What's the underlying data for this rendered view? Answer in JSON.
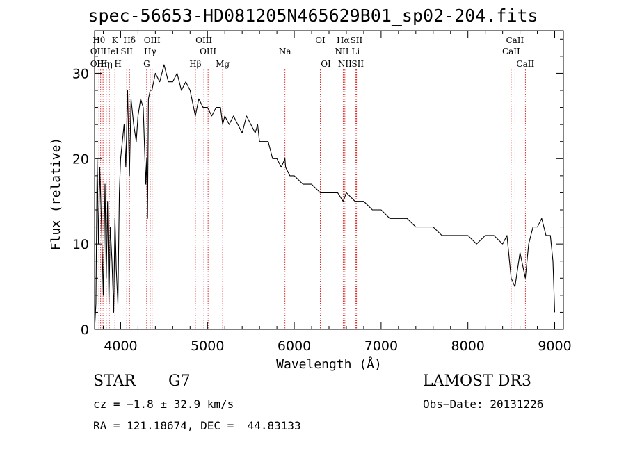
{
  "chart_data": {
    "type": "line",
    "title": "spec-56653-HD081205N465629B01_sp02-204.fits",
    "xlabel": "Wavelength (Å)",
    "ylabel": "Flux (relative)",
    "xlim": [
      3700,
      9100
    ],
    "ylim": [
      0,
      35
    ],
    "xticks": [
      4000,
      5000,
      6000,
      7000,
      8000,
      9000
    ],
    "yticks": [
      0,
      10,
      20,
      30
    ],
    "grid": false,
    "series": [
      {
        "name": "spectrum",
        "x": [
          3700,
          3715,
          3730,
          3745,
          3760,
          3780,
          3800,
          3820,
          3835,
          3850,
          3865,
          3880,
          3900,
          3920,
          3935,
          3950,
          3968,
          3985,
          4000,
          4020,
          4040,
          4060,
          4080,
          4101,
          4120,
          4150,
          4180,
          4200,
          4230,
          4260,
          4290,
          4300,
          4310,
          4320,
          4340,
          4360,
          4380,
          4400,
          4450,
          4500,
          4550,
          4600,
          4650,
          4700,
          4750,
          4800,
          4861,
          4900,
          4950,
          5000,
          5050,
          5100,
          5150,
          5175,
          5200,
          5250,
          5300,
          5350,
          5400,
          5450,
          5500,
          5550,
          5578,
          5600,
          5650,
          5700,
          5750,
          5800,
          5850,
          5893,
          5900,
          5950,
          6000,
          6100,
          6200,
          6300,
          6400,
          6500,
          6563,
          6600,
          6700,
          6800,
          6900,
          7000,
          7100,
          7200,
          7300,
          7400,
          7500,
          7600,
          7700,
          7800,
          7900,
          8000,
          8100,
          8200,
          8300,
          8400,
          8450,
          8498,
          8542,
          8600,
          8662,
          8700,
          8750,
          8800,
          8850,
          8900,
          8950,
          8980,
          9000
        ],
        "values": [
          0,
          3,
          20,
          10,
          19,
          12,
          4,
          17,
          6,
          15,
          3,
          12,
          8,
          2,
          13,
          7,
          3,
          16,
          20,
          22,
          24,
          19,
          28,
          18,
          27,
          24,
          22,
          25,
          27,
          26,
          17,
          20,
          13,
          27,
          28,
          28,
          29,
          30,
          29,
          31,
          29,
          29,
          30,
          28,
          29,
          28,
          25,
          27,
          26,
          26,
          25,
          26,
          26,
          24,
          25,
          24,
          25,
          24,
          23,
          25,
          24,
          23,
          24,
          22,
          22,
          22,
          20,
          20,
          19,
          20,
          19,
          18,
          18,
          17,
          17,
          16,
          16,
          16,
          15,
          16,
          15,
          15,
          14,
          14,
          13,
          13,
          13,
          12,
          12,
          12,
          11,
          11,
          11,
          11,
          10,
          11,
          11,
          10,
          11,
          6,
          5,
          9,
          6,
          10,
          12,
          12,
          13,
          11,
          11,
          8,
          2
        ]
      }
    ],
    "annotations": [
      {
        "text": "Na",
        "x": 5893
      }
    ],
    "line_markers": [
      {
        "wavelength": 3727,
        "row1": "",
        "row2": "OII",
        "row3": "OII"
      },
      {
        "wavelength": 3750,
        "row1": "Hθ",
        "row2": "",
        "row3": ""
      },
      {
        "wavelength": 3770,
        "row1": "",
        "row2": "",
        "row3": ""
      },
      {
        "wavelength": 3797,
        "row1": "",
        "row2": "",
        "row3": "Hη"
      },
      {
        "wavelength": 3835,
        "row1": "",
        "row2": "",
        "row3": "Hη"
      },
      {
        "wavelength": 3869,
        "row1": "",
        "row2": "",
        "row3": ""
      },
      {
        "wavelength": 3889,
        "row1": "",
        "row2": "HeI",
        "row3": ""
      },
      {
        "wavelength": 3934,
        "row1": "K",
        "row2": "",
        "row3": ""
      },
      {
        "wavelength": 3969,
        "row1": "",
        "row2": "",
        "row3": "H"
      },
      {
        "wavelength": 4070,
        "row1": "",
        "row2": "SII",
        "row3": ""
      },
      {
        "wavelength": 4102,
        "row1": "Hδ",
        "row2": "",
        "row3": ""
      },
      {
        "wavelength": 4300,
        "row1": "",
        "row2": "",
        "row3": "G"
      },
      {
        "wavelength": 4340,
        "row1": "",
        "row2": "Hγ",
        "row3": ""
      },
      {
        "wavelength": 4363,
        "row1": "OIII",
        "row2": "",
        "row3": ""
      },
      {
        "wavelength": 4861,
        "row1": "",
        "row2": "",
        "row3": "Hβ"
      },
      {
        "wavelength": 4959,
        "row1": "OIII",
        "row2": "",
        "row3": ""
      },
      {
        "wavelength": 5007,
        "row1": "",
        "row2": "OIII",
        "row3": ""
      },
      {
        "wavelength": 5175,
        "row1": "",
        "row2": "",
        "row3": "Mg"
      },
      {
        "wavelength": 5893,
        "row1": "",
        "row2": "",
        "row3": ""
      },
      {
        "wavelength": 6300,
        "row1": "OI",
        "row2": "",
        "row3": ""
      },
      {
        "wavelength": 6364,
        "row1": "",
        "row2": "",
        "row3": "OI"
      },
      {
        "wavelength": 6548,
        "row1": "",
        "row2": "NII",
        "row3": ""
      },
      {
        "wavelength": 6563,
        "row1": "Hα",
        "row2": "",
        "row3": ""
      },
      {
        "wavelength": 6583,
        "row1": "",
        "row2": "",
        "row3": "NII"
      },
      {
        "wavelength": 6707,
        "row1": "",
        "row2": "Li",
        "row3": ""
      },
      {
        "wavelength": 6716,
        "row1": "SII",
        "row2": "",
        "row3": ""
      },
      {
        "wavelength": 6731,
        "row1": "",
        "row2": "",
        "row3": "SII"
      },
      {
        "wavelength": 8498,
        "row1": "",
        "row2": "CaII",
        "row3": ""
      },
      {
        "wavelength": 8542,
        "row1": "CaII",
        "row2": "",
        "row3": ""
      },
      {
        "wavelength": 8662,
        "row1": "",
        "row2": "",
        "row3": "CaII"
      }
    ],
    "colors": {
      "spectrum": "#000000",
      "marker": "#cc0000",
      "axes": "#000000"
    }
  },
  "info": {
    "class": "STAR",
    "subclass": "G7",
    "survey": "LAMOST DR3",
    "cz": "cz = −1.8 ± 32.9 km/s",
    "obs_date": "Obs−Date: 20131226",
    "radec": "RA = 121.18674, DEC =  44.83133"
  }
}
